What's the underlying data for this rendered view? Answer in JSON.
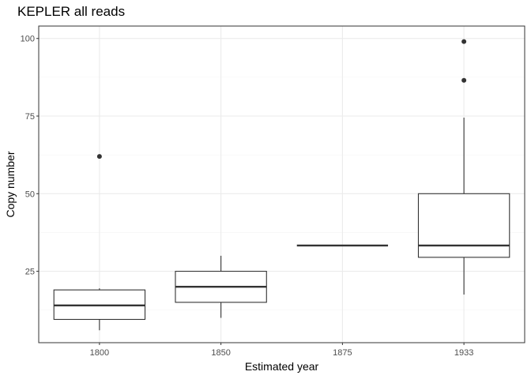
{
  "chart_data": {
    "type": "boxplot",
    "title": "KEPLER all reads",
    "xlabel": "Estimated year",
    "ylabel": "Copy number",
    "ylim": [
      2,
      104
    ],
    "yticks": [
      25,
      50,
      75,
      100
    ],
    "grid": true,
    "legend": "none",
    "categories": [
      "1800",
      "1850",
      "1875",
      "1933"
    ],
    "boxes": [
      {
        "category": "1800",
        "whisker_low": 6,
        "q1": 9.5,
        "median": 14,
        "q3": 19,
        "whisker_high": 19.5,
        "outliers": [
          62
        ]
      },
      {
        "category": "1850",
        "whisker_low": 10,
        "q1": 15,
        "median": 20,
        "q3": 25,
        "whisker_high": 30,
        "outliers": []
      },
      {
        "category": "1875",
        "whisker_low": 33.3,
        "q1": 33.3,
        "median": 33.3,
        "q3": 33.3,
        "whisker_high": 33.3,
        "outliers": []
      },
      {
        "category": "1933",
        "whisker_low": 17.5,
        "q1": 29.5,
        "median": 33.3,
        "q3": 50,
        "whisker_high": 74.5,
        "outliers": [
          86.5,
          99
        ]
      }
    ],
    "colors": {
      "box_stroke": "#333333",
      "box_fill": "#ffffff",
      "grid_major": "#ebebeb",
      "grid_minor": "#f5f5f5",
      "panel_border": "#333333"
    }
  }
}
